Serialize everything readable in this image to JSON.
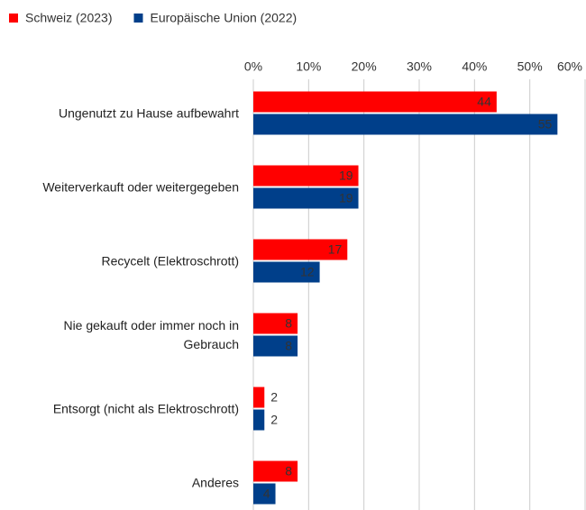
{
  "chart_data": {
    "type": "bar",
    "orientation": "horizontal",
    "categories": [
      "Ungenutzt zu Hause aufbewahrt",
      "Weiterverkauft oder weitergegeben",
      "Recycelt (Elektroschrott)",
      "Nie gekauft oder immer noch in Gebrauch",
      "Entsorgt (nicht als Elektroschrott)",
      "Anderes"
    ],
    "series": [
      {
        "name": "Schweiz (2023)",
        "color": "#ff0000",
        "values": [
          44,
          19,
          17,
          8,
          2,
          8
        ]
      },
      {
        "name": "Europäische Union (2022)",
        "color": "#003f8a",
        "values": [
          55,
          19,
          12,
          8,
          2,
          4
        ]
      }
    ],
    "xlim": [
      0,
      60
    ],
    "xticks": [
      {
        "value": 0,
        "label": "0%"
      },
      {
        "value": 10,
        "label": "10%"
      },
      {
        "value": 20,
        "label": "20%"
      },
      {
        "value": 30,
        "label": "30%"
      },
      {
        "value": 40,
        "label": "40%"
      },
      {
        "value": 50,
        "label": "50%"
      },
      {
        "value": 60,
        "label": "60%"
      }
    ],
    "grid": true,
    "legend": "top-left"
  }
}
